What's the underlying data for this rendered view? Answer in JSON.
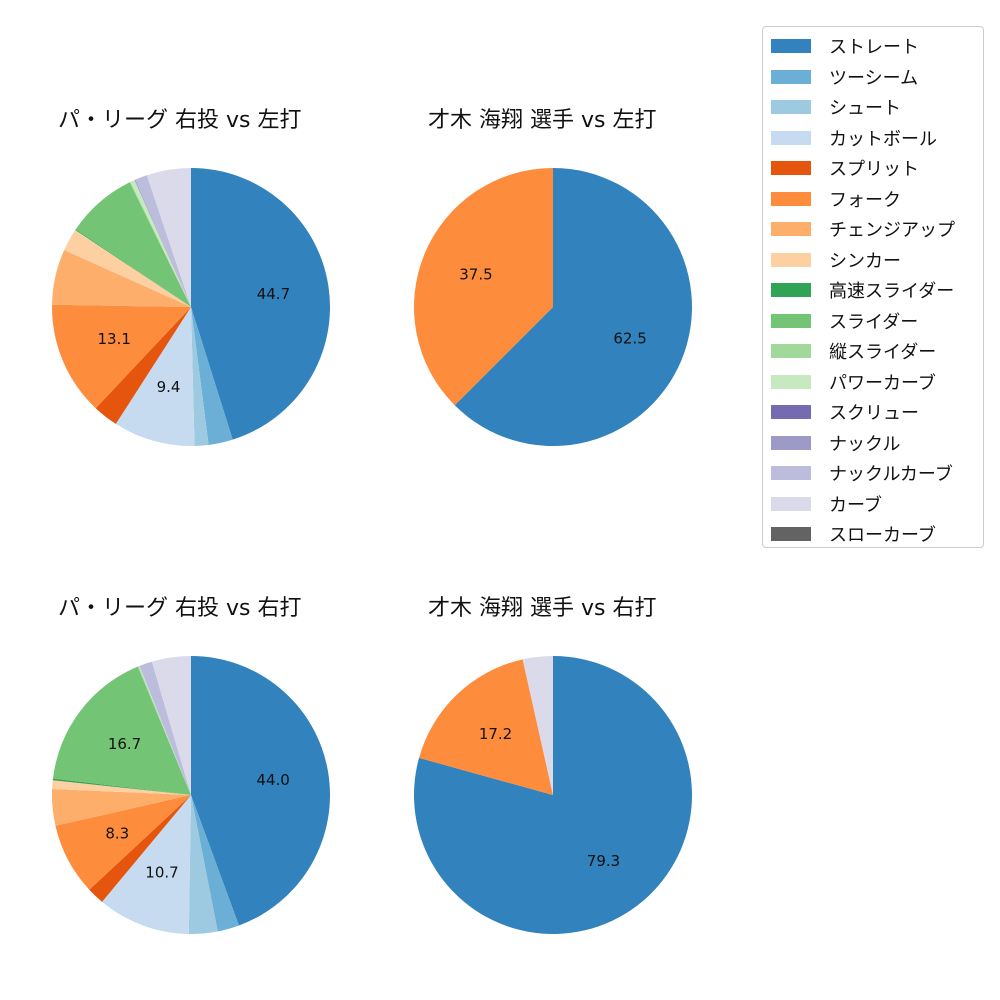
{
  "chart_data": [
    {
      "type": "pie",
      "title": "パ・リーグ 右投 vs 左打",
      "slices": [
        {
          "label": "ストレート",
          "value": 44.7,
          "color": "#3182bd"
        },
        {
          "label": "ツーシーム",
          "value": 2.8,
          "color": "#6baed6"
        },
        {
          "label": "シュート",
          "value": 1.6,
          "color": "#9ecae1"
        },
        {
          "label": "カットボール",
          "value": 9.4,
          "color": "#c6dbef"
        },
        {
          "label": "スプリット",
          "value": 2.9,
          "color": "#e6550d"
        },
        {
          "label": "フォーク",
          "value": 13.1,
          "color": "#fd8d3c"
        },
        {
          "label": "チェンジアップ",
          "value": 6.4,
          "color": "#fdae6b"
        },
        {
          "label": "シンカー",
          "value": 2.6,
          "color": "#fdd0a2"
        },
        {
          "label": "高速スライダー",
          "value": 0.1,
          "color": "#31a354"
        },
        {
          "label": "スライダー",
          "value": 8.2,
          "color": "#74c476"
        },
        {
          "label": "縦スライダー",
          "value": 0.1,
          "color": "#a1d99b"
        },
        {
          "label": "パワーカーブ",
          "value": 0.5,
          "color": "#c7e9c0"
        },
        {
          "label": "スクリュー",
          "value": 0.0,
          "color": "#756bb1"
        },
        {
          "label": "ナックル",
          "value": 0.1,
          "color": "#9e9ac8"
        },
        {
          "label": "ナックルカーブ",
          "value": 1.4,
          "color": "#bcbddc"
        },
        {
          "label": "カーブ",
          "value": 5.1,
          "color": "#dadaeb"
        },
        {
          "label": "スローカーブ",
          "value": 0.0,
          "color": "#636363"
        }
      ],
      "data_labels": [
        "44.7",
        "9.4",
        "13.1"
      ]
    },
    {
      "type": "pie",
      "title": "才木 海翔 選手 vs 左打",
      "slices": [
        {
          "label": "ストレート",
          "value": 62.5,
          "color": "#3182bd"
        },
        {
          "label": "フォーク",
          "value": 37.5,
          "color": "#fd8d3c"
        }
      ],
      "data_labels": [
        "62.5",
        "37.5"
      ]
    },
    {
      "type": "pie",
      "title": "パ・リーグ 右投 vs 右打",
      "slices": [
        {
          "label": "ストレート",
          "value": 44.0,
          "color": "#3182bd"
        },
        {
          "label": "ツーシーム",
          "value": 2.5,
          "color": "#6baed6"
        },
        {
          "label": "シュート",
          "value": 3.3,
          "color": "#9ecae1"
        },
        {
          "label": "カットボール",
          "value": 10.7,
          "color": "#c6dbef"
        },
        {
          "label": "スプリット",
          "value": 2.0,
          "color": "#e6550d"
        },
        {
          "label": "フォーク",
          "value": 8.3,
          "color": "#fd8d3c"
        },
        {
          "label": "チェンジアップ",
          "value": 4.2,
          "color": "#fdae6b"
        },
        {
          "label": "シンカー",
          "value": 1.0,
          "color": "#fdd0a2"
        },
        {
          "label": "高速スライダー",
          "value": 0.2,
          "color": "#31a354"
        },
        {
          "label": "スライダー",
          "value": 16.7,
          "color": "#74c476"
        },
        {
          "label": "縦スライダー",
          "value": 0.1,
          "color": "#a1d99b"
        },
        {
          "label": "パワーカーブ",
          "value": 0.1,
          "color": "#c7e9c0"
        },
        {
          "label": "ナックルカーブ",
          "value": 1.5,
          "color": "#bcbddc"
        },
        {
          "label": "カーブ",
          "value": 4.5,
          "color": "#dadaeb"
        }
      ],
      "data_labels": [
        "44.0",
        "10.7",
        "8.3",
        "16.7"
      ]
    },
    {
      "type": "pie",
      "title": "才木 海翔 選手 vs 右打",
      "slices": [
        {
          "label": "ストレート",
          "value": 79.3,
          "color": "#3182bd"
        },
        {
          "label": "フォーク",
          "value": 17.2,
          "color": "#fd8d3c"
        },
        {
          "label": "カーブ",
          "value": 3.5,
          "color": "#dadaeb"
        }
      ],
      "data_labels": [
        "79.3",
        "17.2"
      ]
    }
  ],
  "legend": [
    {
      "label": "ストレート",
      "color": "#3182bd"
    },
    {
      "label": "ツーシーム",
      "color": "#6baed6"
    },
    {
      "label": "シュート",
      "color": "#9ecae1"
    },
    {
      "label": "カットボール",
      "color": "#c6dbef"
    },
    {
      "label": "スプリット",
      "color": "#e6550d"
    },
    {
      "label": "フォーク",
      "color": "#fd8d3c"
    },
    {
      "label": "チェンジアップ",
      "color": "#fdae6b"
    },
    {
      "label": "シンカー",
      "color": "#fdd0a2"
    },
    {
      "label": "高速スライダー",
      "color": "#31a354"
    },
    {
      "label": "スライダー",
      "color": "#74c476"
    },
    {
      "label": "縦スライダー",
      "color": "#a1d99b"
    },
    {
      "label": "パワーカーブ",
      "color": "#c7e9c0"
    },
    {
      "label": "スクリュー",
      "color": "#756bb1"
    },
    {
      "label": "ナックル",
      "color": "#9e9ac8"
    },
    {
      "label": "ナックルカーブ",
      "color": "#bcbddc"
    },
    {
      "label": "カーブ",
      "color": "#dadaeb"
    },
    {
      "label": "スローカーブ",
      "color": "#636363"
    }
  ]
}
